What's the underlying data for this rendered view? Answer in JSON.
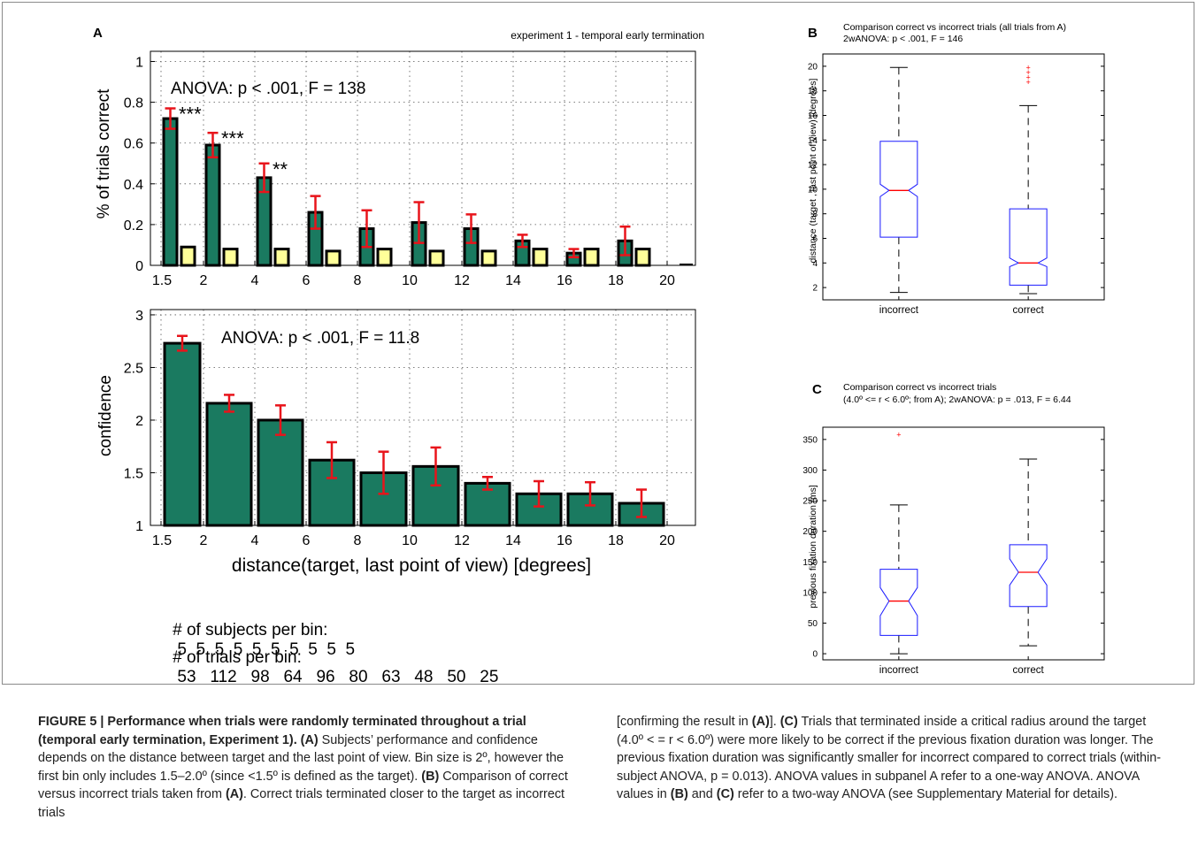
{
  "figure": {
    "panel_labels": {
      "a": "A",
      "b": "B",
      "c": "C"
    },
    "experiment_label": "experiment 1 - temporal early termination",
    "bins_label": [
      "1.5",
      "2",
      "4",
      "6",
      "8",
      "10",
      "12",
      "14",
      "16",
      "18",
      "20"
    ],
    "shared_xlabel": "distance(target, last point of view) [degrees]",
    "subjects_row": {
      "label": "# of subjects per bin:",
      "values": [
        "5",
        "5",
        "5",
        "5",
        "5",
        "5",
        "5",
        "5",
        "5",
        "5"
      ]
    },
    "trials_row": {
      "label": "# of trials per bin:",
      "values": [
        "53",
        "112",
        "98",
        "64",
        "96",
        "80",
        "63",
        "48",
        "50",
        "25"
      ]
    }
  },
  "chart_data": [
    {
      "id": "A-top",
      "type": "bar",
      "ylabel": "% of trials correct",
      "annotation": "ANOVA: p < .001, F = 138",
      "ylim": [
        0,
        1.05
      ],
      "yticks": [
        0,
        0.2,
        0.4,
        0.6,
        0.8,
        1
      ],
      "yticklabels": [
        "0",
        "0.2",
        "0.4",
        "0.6",
        "0.8",
        "1"
      ],
      "series": [
        {
          "values": [
            0.72,
            0.59,
            0.43,
            0.26,
            0.18,
            0.21,
            0.18,
            0.12,
            0.06,
            0.12
          ],
          "errors": [
            0.05,
            0.06,
            0.07,
            0.08,
            0.09,
            0.1,
            0.07,
            0.03,
            0.02,
            0.07
          ],
          "color": "#1a7a60"
        },
        {
          "values": [
            0.09,
            0.08,
            0.08,
            0.07,
            0.08,
            0.07,
            0.07,
            0.08,
            0.08,
            0.08
          ],
          "color": "#ffff99"
        }
      ],
      "significance": [
        "***",
        "***",
        "**"
      ],
      "grid": "dotted"
    },
    {
      "id": "A-bottom",
      "type": "bar",
      "ylabel": "confidence",
      "annotation": "ANOVA: p < .001, F = 11.8",
      "ylim": [
        1,
        3.05
      ],
      "yticks": [
        1,
        1.5,
        2,
        2.5,
        3
      ],
      "yticklabels": [
        "1",
        "1.5",
        "2",
        "2.5",
        "3"
      ],
      "series": [
        {
          "values": [
            2.73,
            2.16,
            2.0,
            1.62,
            1.5,
            1.56,
            1.4,
            1.3,
            1.3,
            1.21
          ],
          "errors": [
            0.07,
            0.08,
            0.14,
            0.17,
            0.2,
            0.18,
            0.06,
            0.12,
            0.11,
            0.13
          ],
          "color": "#1a7a60"
        }
      ],
      "grid": "dotted"
    },
    {
      "id": "B",
      "type": "box",
      "title_line1": "Comparison correct vs incorrect trials (all trials from A)",
      "title_line2": "2wANOVA: p < .001, F = 146",
      "ylabel": "distance (target , last point of view) [degrees]",
      "categories": [
        "incorrect",
        "correct"
      ],
      "ylim": [
        1,
        21
      ],
      "yticks": [
        2,
        4,
        6,
        8,
        10,
        12,
        14,
        16,
        18,
        20
      ],
      "boxes": [
        {
          "whisker_low": 1.6,
          "q1": 6.1,
          "notch_low": 9.4,
          "median": 9.9,
          "notch_high": 10.4,
          "q3": 13.9,
          "whisker_high": 19.9,
          "outliers": []
        },
        {
          "whisker_low": 1.5,
          "q1": 2.2,
          "notch_low": 3.7,
          "median": 4.0,
          "notch_high": 4.4,
          "q3": 8.4,
          "whisker_high": 16.8,
          "outliers": [
            18.7,
            19.1,
            19.5,
            19.9
          ]
        }
      ]
    },
    {
      "id": "C",
      "type": "box",
      "title_line1": "Comparison correct vs incorrect trials",
      "title_line2": "(4.0º <= r < 6.0º;  from A); 2wANOVA: p = .013, F = 6.44",
      "ylabel": "previous fixation duration [ms]",
      "categories": [
        "incorrect",
        "correct"
      ],
      "ylim": [
        -10,
        370
      ],
      "yticks": [
        0,
        50,
        100,
        150,
        200,
        250,
        300,
        350
      ],
      "boxes": [
        {
          "whisker_low": 0,
          "q1": 30,
          "notch_low": 62,
          "median": 86,
          "notch_high": 108,
          "q3": 138,
          "whisker_high": 243,
          "outliers": [
            358
          ]
        },
        {
          "whisker_low": 13,
          "q1": 77,
          "notch_low": 112,
          "median": 133,
          "notch_high": 155,
          "q3": 178,
          "whisker_high": 318,
          "outliers": []
        }
      ]
    }
  ],
  "caption": {
    "left": [
      {
        "t": "FIGURE 5 | Performance when trials were randomly terminated throughout a trial (temporal early termination, Experiment 1). (A)",
        "b": true
      },
      {
        "t": " Subjects’ performance and confidence depends on the distance between target and the last point of view. Bin size is 2º, however the first bin only includes 1.5–2.0º (since <1.5º is defined as the target). "
      },
      {
        "t": "(B)",
        "b": true
      },
      {
        "t": " Comparison of correct versus incorrect trials taken from "
      },
      {
        "t": "(A)",
        "b": true
      },
      {
        "t": ". Correct trials terminated closer to the target as incorrect trials"
      }
    ],
    "right": [
      {
        "t": "[confirming the result in "
      },
      {
        "t": "(A)",
        "b": true
      },
      {
        "t": "]. "
      },
      {
        "t": "(C)",
        "b": true
      },
      {
        "t": " Trials that terminated inside a critical radius around the target (4.0º < = r < 6.0º) were more likely to be correct if the previous fixation duration was longer. The previous fixation duration was significantly smaller for incorrect compared to correct trials (within-subject ANOVA, p = 0.013). ANOVA values in subpanel A refer to a one-way ANOVA. ANOVA values in "
      },
      {
        "t": "(B)",
        "b": true
      },
      {
        "t": " and "
      },
      {
        "t": "(C)",
        "b": true
      },
      {
        "t": " refer to a two-way ANOVA (see Supplementary Material for details)."
      }
    ]
  }
}
